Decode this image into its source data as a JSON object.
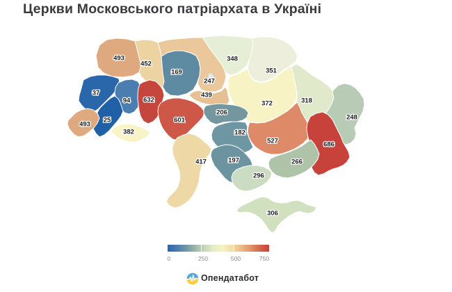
{
  "title": "Церкви Московського патріархата в Україні",
  "brand": {
    "name": "Опендатабот",
    "logo_blue": "#58a8dc",
    "logo_yellow": "#f6cd3c"
  },
  "legend": {
    "min": 0,
    "max": 750,
    "ticks": [
      "0",
      "250",
      "500",
      "750"
    ],
    "gradient": [
      "#2a66aa",
      "#4a7db0",
      "#6f97a3",
      "#9db7ab",
      "#c8d6bc",
      "#e6edcb",
      "#f5f2c0",
      "#f0dda6",
      "#e8b988",
      "#df9468",
      "#d4654b",
      "#c6423a"
    ]
  },
  "chart_data": {
    "type": "choropleth",
    "title": "Церкви Московського патріархата в Україні",
    "geography": "Ukraine, administrative regions",
    "legend_ticks": [
      0,
      250,
      500,
      750
    ],
    "value_range": [
      0,
      750
    ],
    "grid": false,
    "legend_position": "bottom-center",
    "regions": [
      {
        "id": "r01",
        "value": 493,
        "fill": "#dfa97f",
        "label_x": 171,
        "label_y": 83
      },
      {
        "id": "r02",
        "value": 452,
        "fill": "#eed3a2",
        "label_x": 210,
        "label_y": 91
      },
      {
        "id": "r03",
        "value": 169,
        "fill": "#5e8ba1",
        "label_x": 254,
        "label_y": 103
      },
      {
        "id": "r04",
        "value": 247,
        "fill": "#eac89c",
        "label_x": 301,
        "label_y": 116
      },
      {
        "id": "r05",
        "value": 348,
        "fill": "#e6eed6",
        "label_x": 334,
        "label_y": 84
      },
      {
        "id": "r06",
        "value": 351,
        "fill": "#edefdc",
        "label_x": 390,
        "label_y": 101
      },
      {
        "id": "r07",
        "value": 318,
        "fill": "#e0e9c9",
        "label_x": 441,
        "label_y": 144
      },
      {
        "id": "r08",
        "value": 248,
        "fill": "#b7cbb5",
        "label_x": 506,
        "label_y": 168
      },
      {
        "id": "r09",
        "value": 37,
        "fill": "#2a66aa",
        "label_x": 138,
        "label_y": 133
      },
      {
        "id": "r10",
        "value": 94,
        "fill": "#4a7db0",
        "label_x": 182,
        "label_y": 144
      },
      {
        "id": "r11",
        "value": 632,
        "fill": "#c5463c",
        "label_x": 214,
        "label_y": 143
      },
      {
        "id": "r12",
        "value": 439,
        "fill": "#e6bf92",
        "label_x": 297,
        "label_y": 136
      },
      {
        "id": "r13",
        "value": 372,
        "fill": "#f8f3c5",
        "label_x": 384,
        "label_y": 148
      },
      {
        "id": "r14",
        "value": 601,
        "fill": "#cd5847",
        "label_x": 258,
        "label_y": 172
      },
      {
        "id": "r15",
        "value": 206,
        "fill": "#74979f",
        "label_x": 319,
        "label_y": 161
      },
      {
        "id": "r16",
        "value": 182,
        "fill": "#6f97a3",
        "label_x": 345,
        "label_y": 190
      },
      {
        "id": "r17",
        "value": 527,
        "fill": "#de8a69",
        "label_x": 392,
        "label_y": 202
      },
      {
        "id": "r18",
        "value": 686,
        "fill": "#c6423a",
        "label_x": 473,
        "label_y": 207
      },
      {
        "id": "r19",
        "value": 25,
        "fill": "#2060a6",
        "label_x": 154,
        "label_y": 172
      },
      {
        "id": "r20",
        "value": 493,
        "fill": "#dfa97f",
        "label_x": 122,
        "label_y": 178
      },
      {
        "id": "r21",
        "value": 382,
        "fill": "#f9f4c7",
        "label_x": 185,
        "label_y": 189
      },
      {
        "id": "r22",
        "value": 417,
        "fill": "#eed9a6",
        "label_x": 289,
        "label_y": 232
      },
      {
        "id": "r23",
        "value": 197,
        "fill": "#6b94a0",
        "label_x": 336,
        "label_y": 230
      },
      {
        "id": "r24",
        "value": 266,
        "fill": "#afc3a9",
        "label_x": 427,
        "label_y": 232
      },
      {
        "id": "r25",
        "value": 296,
        "fill": "#cbdcc3",
        "label_x": 372,
        "label_y": 252
      },
      {
        "id": "r26",
        "value": 306,
        "fill": "#d1e0bf",
        "label_x": 392,
        "label_y": 306
      }
    ]
  }
}
